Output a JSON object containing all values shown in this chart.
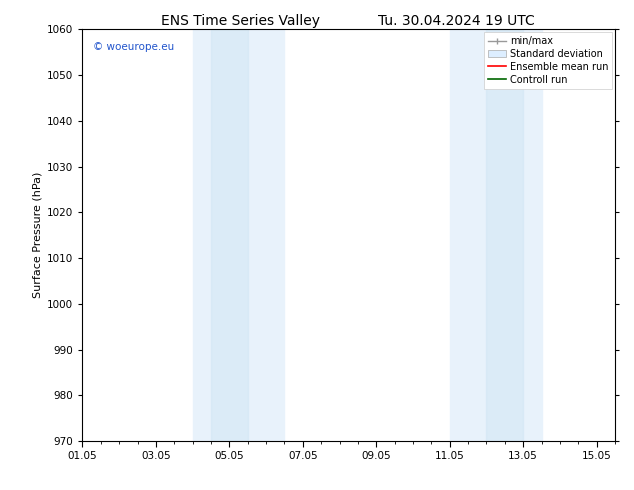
{
  "title_left": "ENS Time Series Valley",
  "title_right": "Tu. 30.04.2024 19 UTC",
  "ylabel": "Surface Pressure (hPa)",
  "ylim": [
    970,
    1060
  ],
  "yticks": [
    970,
    980,
    990,
    1000,
    1010,
    1020,
    1030,
    1040,
    1050,
    1060
  ],
  "xlim": [
    0.0,
    14.5
  ],
  "xtick_positions": [
    0,
    2,
    4,
    6,
    8,
    10,
    12,
    14
  ],
  "xtick_labels": [
    "01.05",
    "03.05",
    "05.05",
    "07.05",
    "09.05",
    "11.05",
    "13.05",
    "15.05"
  ],
  "shaded_bands": [
    {
      "x_start": 3.0,
      "x_end": 4.0
    },
    {
      "x_start": 4.0,
      "x_end": 5.5
    },
    {
      "x_start": 10.0,
      "x_end": 11.0
    },
    {
      "x_start": 11.0,
      "x_end": 12.5
    }
  ],
  "shaded_bands2": [
    {
      "x_start": 3.0,
      "x_end": 5.5
    },
    {
      "x_start": 10.0,
      "x_end": 12.5
    }
  ],
  "band_color_light": "#e8f2fb",
  "band_color_dark": "#d0e6f5",
  "band_color": "#dce9f5",
  "watermark_text": "© woeurope.eu",
  "watermark_color": "#2255cc",
  "legend_items": [
    {
      "label": "min/max",
      "color": "#aaaaaa",
      "type": "minmax"
    },
    {
      "label": "Standard deviation",
      "color": "#ddeeff",
      "type": "stddev"
    },
    {
      "label": "Ensemble mean run",
      "color": "#ff0000",
      "type": "line"
    },
    {
      "label": "Controll run",
      "color": "#008800",
      "type": "line"
    }
  ],
  "bg_color": "#ffffff",
  "axes_bg_color": "#ffffff",
  "grid_color": "#dddddd",
  "title_fontsize": 10,
  "label_fontsize": 8,
  "tick_fontsize": 7.5
}
